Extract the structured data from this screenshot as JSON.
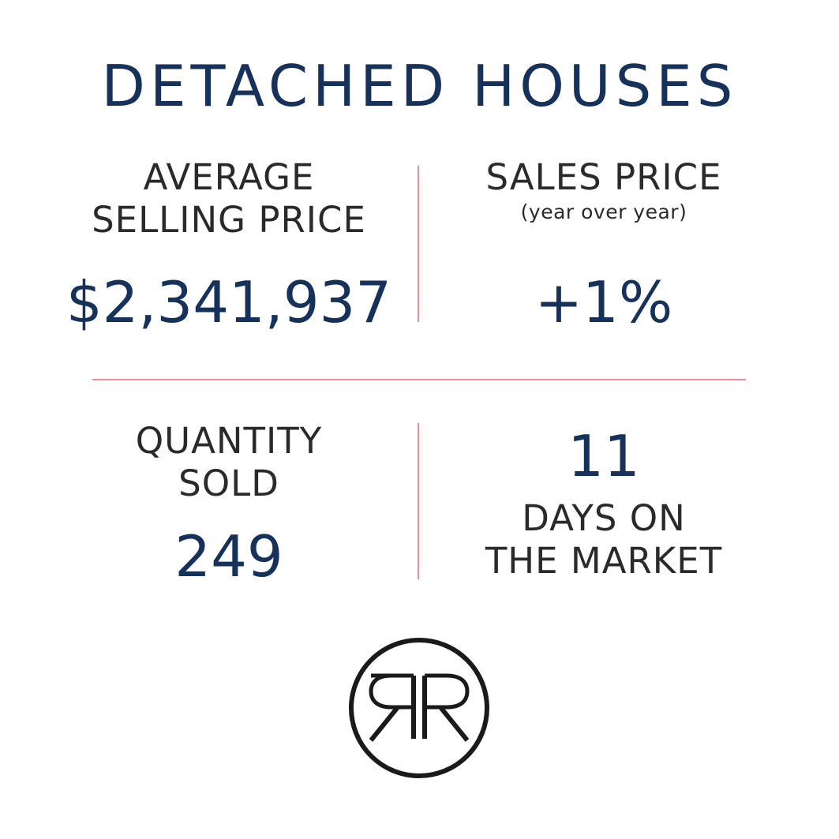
{
  "title": "DETACHED HOUSES",
  "average_selling_price": {
    "label_line1": "AVERAGE",
    "label_line2": "SELLING PRICE",
    "value": "$2,341,937"
  },
  "sales_price": {
    "label": "SALES PRICE",
    "sublabel": "(year over year)",
    "value": "+1%"
  },
  "quantity_sold": {
    "label_line1": "QUANTITY",
    "label_line2": "SOLD",
    "value": "249"
  },
  "days_on_market": {
    "value": "11",
    "label_line1": "DAYS ON",
    "label_line2": "THE MARKET"
  },
  "colors": {
    "navy": "#17325a",
    "text_dark": "#2a2a2a",
    "divider_pink": "#e7919d",
    "logo_black": "#1a1a1a"
  },
  "logo": {
    "icon": "rr-monogram-icon",
    "text": "RR"
  }
}
